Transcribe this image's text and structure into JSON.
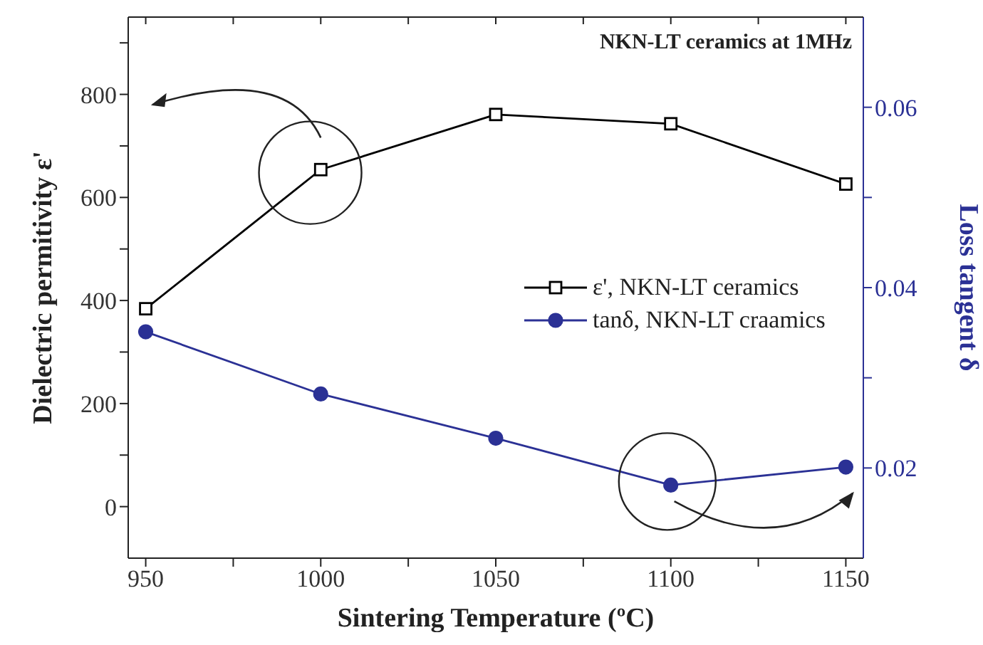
{
  "chart_data": {
    "type": "line",
    "title": "NKN-LT ceramics at 1MHz",
    "xlabel": "Sintering Temperature (ºC)",
    "ylabel": "Dielectric permitivity ε'",
    "y2label": "Loss tangent δ",
    "x": [
      950,
      1000,
      1050,
      1100,
      1150
    ],
    "xlim": [
      945,
      1155
    ],
    "xticks": [
      950,
      {
        "value": 975,
        "label": null
      },
      1000,
      {
        "value": 1025,
        "label": null
      },
      1050,
      {
        "value": 1075,
        "label": null
      },
      1100,
      {
        "value": 1125,
        "label": null
      },
      1150
    ],
    "ylim": [
      -100,
      950
    ],
    "yticks": [
      0,
      {
        "value": 100,
        "label": null
      },
      200,
      {
        "value": 300,
        "label": null
      },
      400,
      {
        "value": 500,
        "label": null
      },
      600,
      {
        "value": 700,
        "label": null
      },
      800,
      {
        "value": 900,
        "label": null
      }
    ],
    "y2lim": [
      0.01,
      0.07
    ],
    "y2ticks": [
      0.02,
      {
        "value": 0.03,
        "label": null
      },
      0.04,
      {
        "value": 0.05,
        "label": null
      },
      0.06
    ],
    "series": [
      {
        "name": "ε', NKN-LT ceramics",
        "color": "#000000",
        "marker": "square",
        "values": [
          384,
          654,
          761,
          743,
          626
        ]
      },
      {
        "name": "tanδ, NKN-LT craamics",
        "color": "#2b3195",
        "marker": "circle",
        "axis": "y2",
        "values": [
          0.0351,
          0.0282,
          0.0233,
          0.0181,
          0.0201
        ]
      }
    ],
    "legend": "right",
    "line_style": "solid"
  }
}
